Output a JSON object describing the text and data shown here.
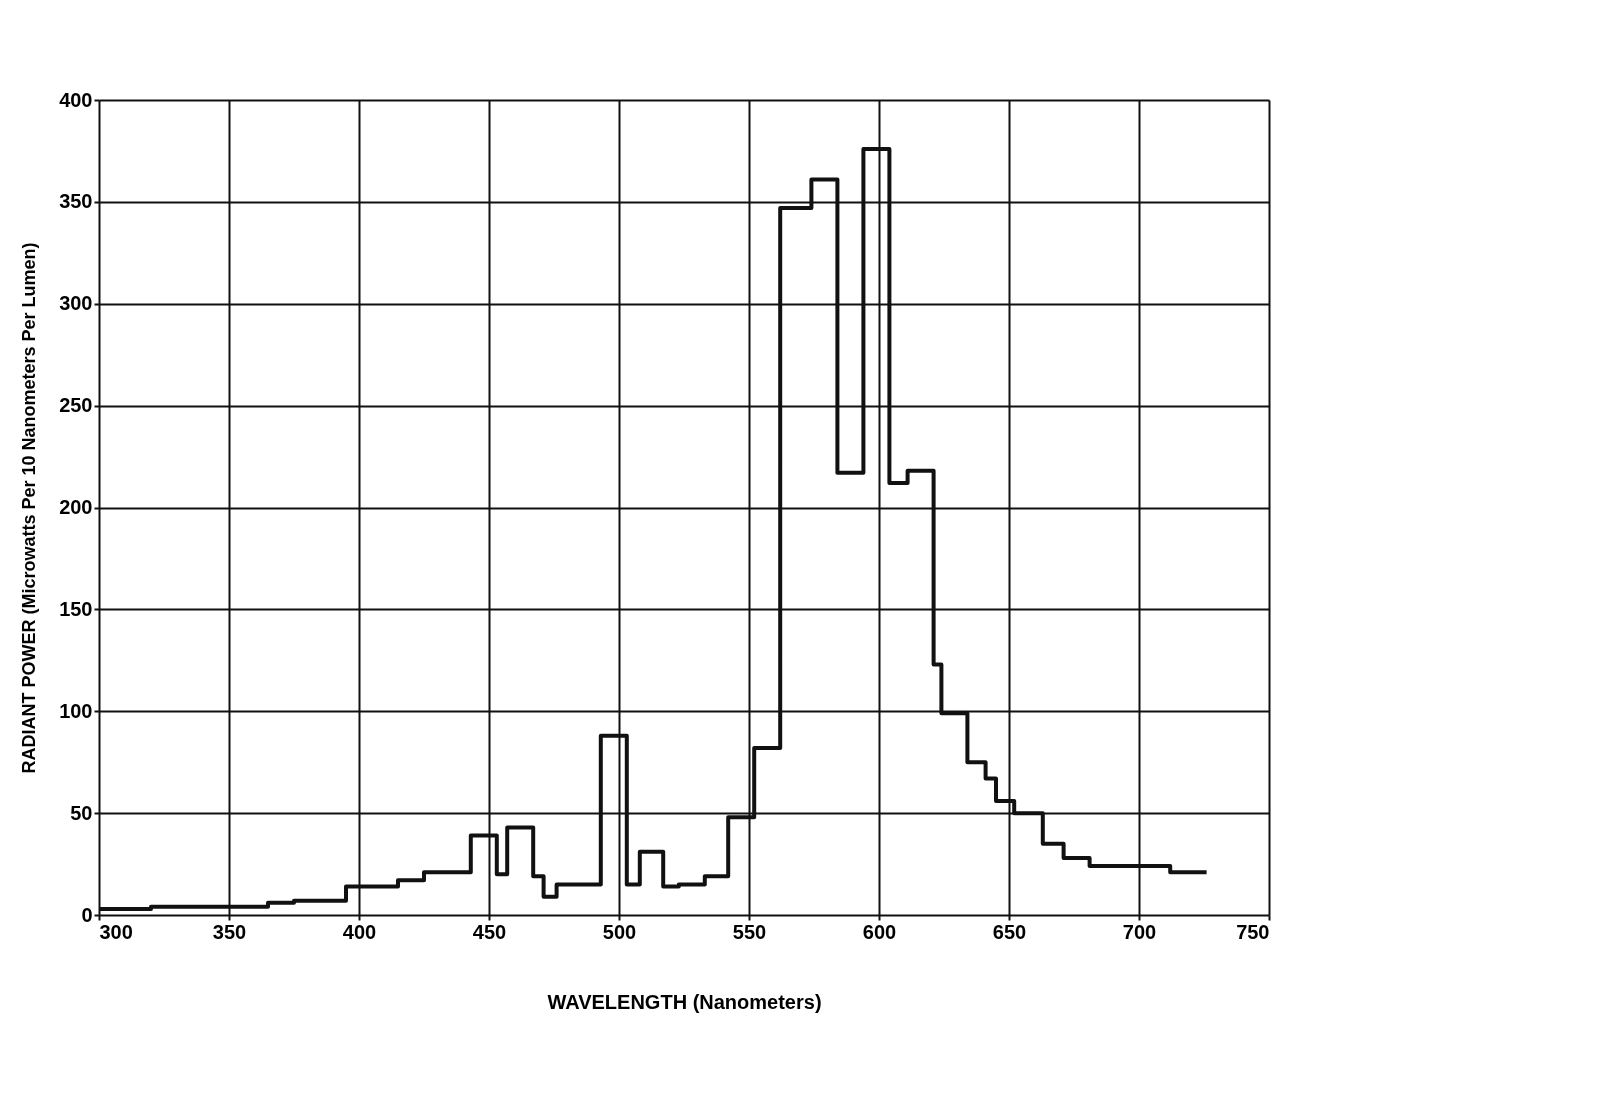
{
  "chart_data": {
    "type": "histogram",
    "xlabel": "WAVELENGTH (Nanometers)",
    "ylabel": "RADIANT POWER (Microwatts Per 10 Nanometers Per Lumen)",
    "bins": [
      300,
      320,
      365,
      375,
      395,
      415,
      425,
      443,
      453,
      457,
      467,
      471,
      476,
      493,
      503,
      508,
      517,
      523,
      533,
      542,
      552,
      562,
      574,
      584,
      594,
      604,
      611,
      621,
      624,
      634,
      641,
      645,
      652,
      663,
      671,
      681,
      712,
      726
    ],
    "values": [
      3,
      4,
      6,
      7,
      14,
      17,
      21,
      39,
      20,
      43,
      19,
      9,
      15,
      88,
      15,
      31,
      14,
      15,
      19,
      48,
      82,
      347,
      361,
      217,
      376,
      212,
      218,
      123,
      99,
      75,
      67,
      56,
      50,
      35,
      28,
      24,
      21
    ],
    "color": "#111111",
    "xlim": [
      300,
      750
    ],
    "xticks": [
      300,
      350,
      400,
      450,
      500,
      550,
      600,
      650,
      700,
      750
    ],
    "ylim": [
      0,
      400
    ],
    "yticks": [
      0,
      50,
      100,
      150,
      200,
      250,
      300,
      350,
      400
    ],
    "grid": true
  }
}
